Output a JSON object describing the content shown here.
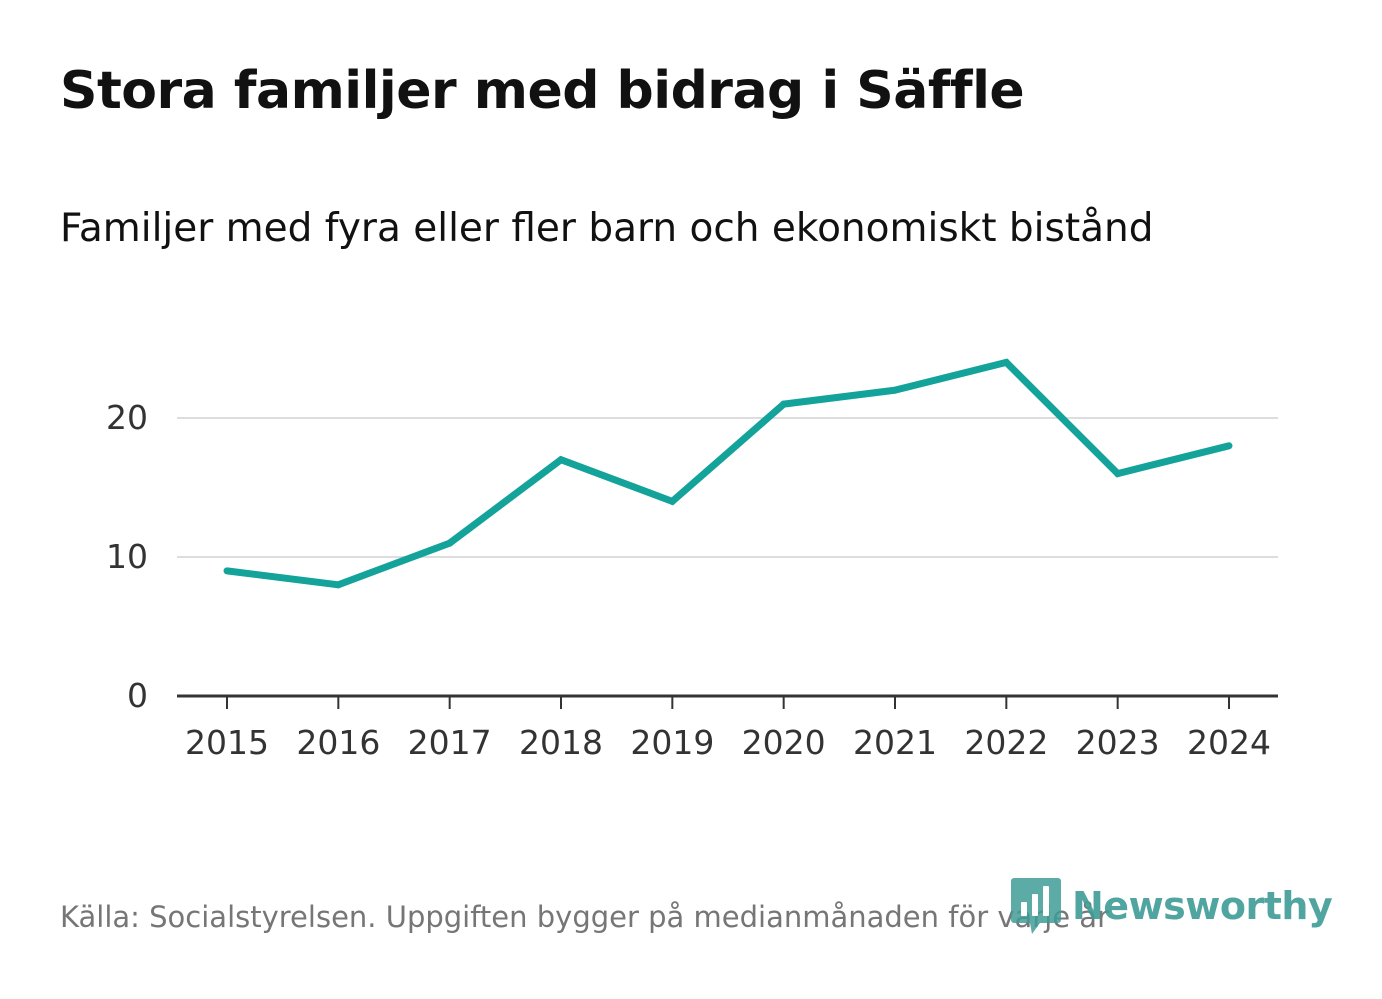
{
  "header": {
    "title": "Stora familjer med bidrag i Säffle",
    "subtitle": "Familjer med fyra eller fler barn och ekonomiskt bistånd"
  },
  "footer": {
    "source": "Källa: Socialstyrelsen. Uppgiften bygger på medianmånaden för varje år",
    "brand": "Newsworthy"
  },
  "colors": {
    "line": "#14a39a",
    "gridline": "#dddddd",
    "axis": "#333333",
    "brand": "#3f9c96"
  },
  "chart_data": {
    "type": "line",
    "title": "Stora familjer med bidrag i Säffle",
    "subtitle": "Familjer med fyra eller fler barn och ekonomiskt bistånd",
    "xlabel": "",
    "ylabel": "",
    "categories": [
      "2015",
      "2016",
      "2017",
      "2018",
      "2019",
      "2020",
      "2021",
      "2022",
      "2023",
      "2024"
    ],
    "series": [
      {
        "name": "Familjer med fyra eller fler barn och ekonomiskt bistånd",
        "values": [
          9,
          8,
          11,
          17,
          14,
          21,
          22,
          24,
          16,
          18
        ]
      }
    ],
    "ylim": [
      0,
      25
    ],
    "yticks": [
      0,
      10,
      20
    ],
    "grid": true,
    "legend": "none"
  }
}
